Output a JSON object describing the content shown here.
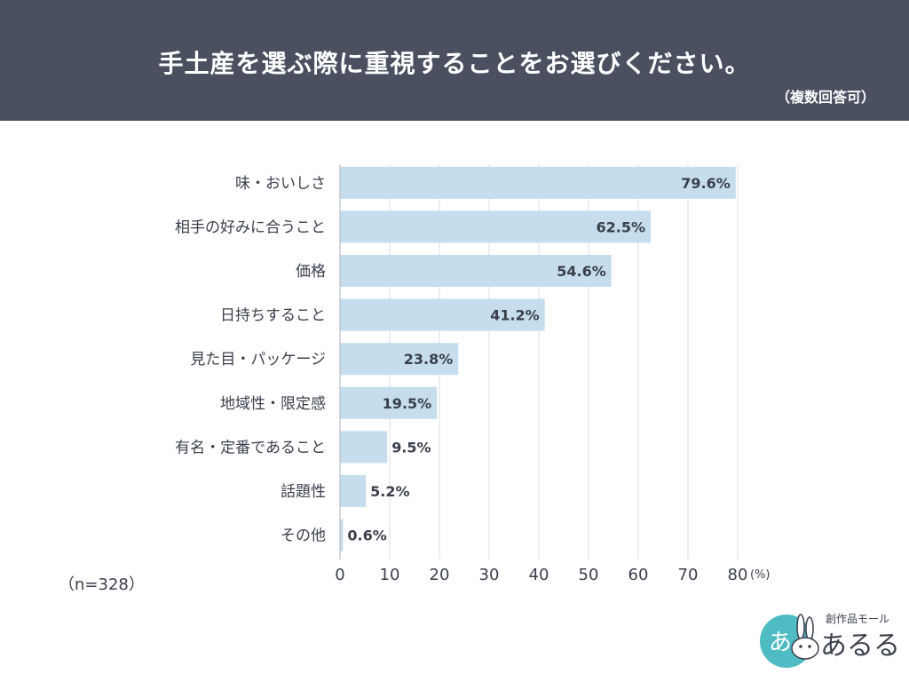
{
  "header": {
    "title": "手土産を選ぶ際に重視することをお選びください。",
    "subtitle": "（複数回答可）"
  },
  "colors": {
    "header_bg": "#4a5060",
    "bar_fill": "#c5ddec",
    "grid": "#d9dce0",
    "text": "#3a3f4b",
    "logo_teal": "#4fbcc4"
  },
  "sample_note": "（n=328）",
  "logo": {
    "caption": "創作品モール",
    "name": "あるる"
  },
  "chart_data": {
    "type": "bar",
    "orientation": "horizontal",
    "categories": [
      "味・おいしさ",
      "相手の好みに合うこと",
      "価格",
      "日持ちすること",
      "見た目・パッケージ",
      "地域性・限定感",
      "有名・定番であること",
      "話題性",
      "その他"
    ],
    "values": [
      79.6,
      62.5,
      54.6,
      41.2,
      23.8,
      19.5,
      9.5,
      5.2,
      0.6
    ],
    "value_labels": [
      "79.6%",
      "62.5%",
      "54.6%",
      "41.2%",
      "23.8%",
      "19.5%",
      "9.5%",
      "5.2%",
      "0.6%"
    ],
    "xticks": [
      "0",
      "10",
      "20",
      "30",
      "40",
      "50",
      "60",
      "70",
      "80"
    ],
    "xunit": "(%)",
    "xlim": [
      0,
      80
    ],
    "grid": true
  }
}
